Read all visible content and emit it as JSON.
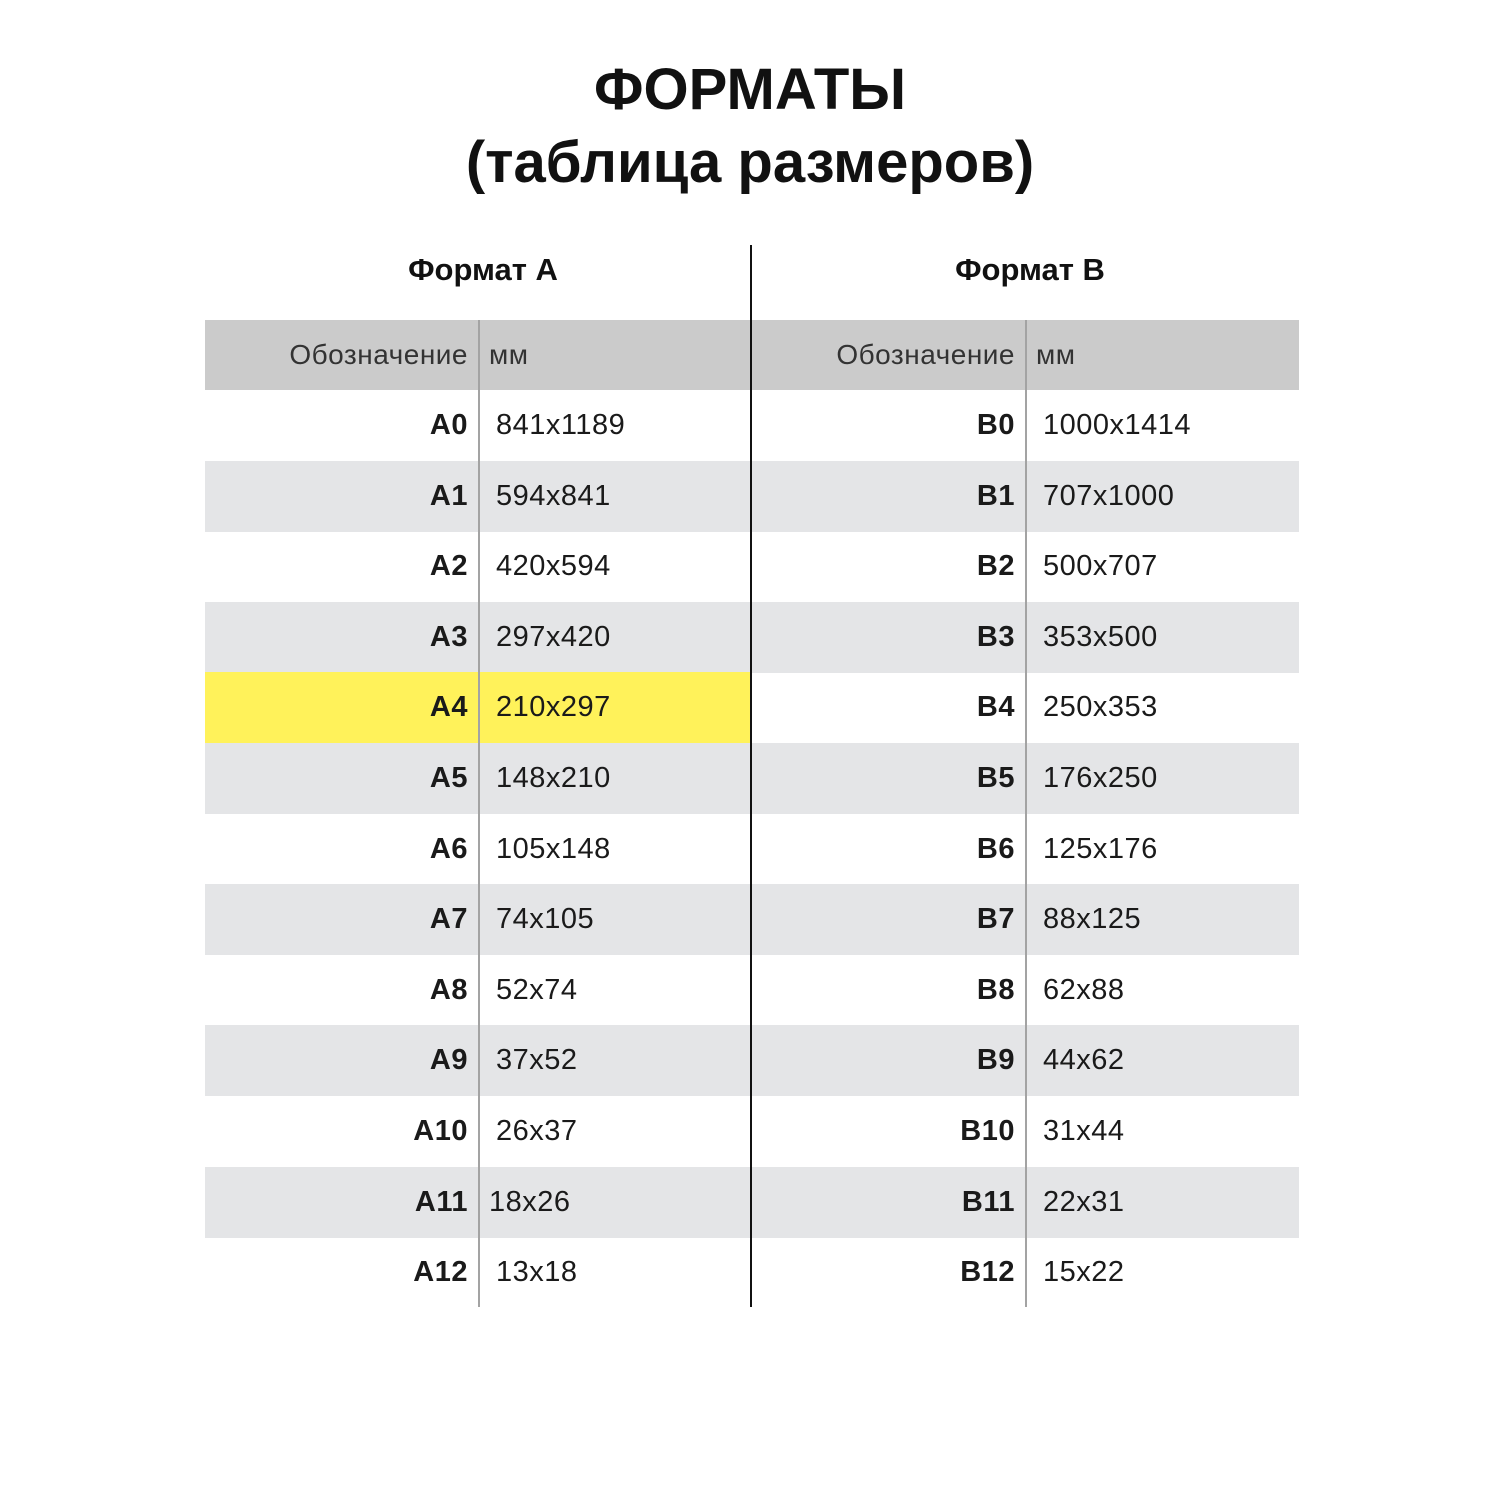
{
  "title": {
    "line1": "ФОРМАТЫ",
    "line2": "(таблица размеров)"
  },
  "colors": {
    "header_bg": "#cbcbcb",
    "alt_row_bg": "#e4e5e7",
    "highlight": "#fff25a"
  },
  "format_a": {
    "heading": "Формат А",
    "col_designation": "Обозначение",
    "col_mm": "мм",
    "highlighted": "A4",
    "rows": [
      {
        "name": "A0",
        "mm": "841x1189"
      },
      {
        "name": "A1",
        "mm": "594x841"
      },
      {
        "name": "A2",
        "mm": "420x594"
      },
      {
        "name": "A3",
        "mm": "297x420"
      },
      {
        "name": "A4",
        "mm": "210x297"
      },
      {
        "name": "A5",
        "mm": "148x210"
      },
      {
        "name": "A6",
        "mm": "105x148"
      },
      {
        "name": "A7",
        "mm": "74x105"
      },
      {
        "name": "A8",
        "mm": "52x74"
      },
      {
        "name": "A9",
        "mm": "37x52"
      },
      {
        "name": "A10",
        "mm": "26x37"
      },
      {
        "name": "A11",
        "mm": "18x26"
      },
      {
        "name": "A12",
        "mm": "13x18"
      }
    ]
  },
  "format_b": {
    "heading": "Формат В",
    "col_designation": "Обозначение",
    "col_mm": "мм",
    "rows": [
      {
        "name": "B0",
        "mm": "1000x1414"
      },
      {
        "name": "B1",
        "mm": "707x1000"
      },
      {
        "name": "B2",
        "mm": "500x707"
      },
      {
        "name": "B3",
        "mm": "353x500"
      },
      {
        "name": "B4",
        "mm": "250x353"
      },
      {
        "name": "B5",
        "mm": "176x250"
      },
      {
        "name": "B6",
        "mm": "125x176"
      },
      {
        "name": "B7",
        "mm": "88x125"
      },
      {
        "name": "B8",
        "mm": "62x88"
      },
      {
        "name": "B9",
        "mm": "44x62"
      },
      {
        "name": "B10",
        "mm": "31x44"
      },
      {
        "name": "B11",
        "mm": "22x31"
      },
      {
        "name": "B12",
        "mm": "15x22"
      }
    ]
  }
}
